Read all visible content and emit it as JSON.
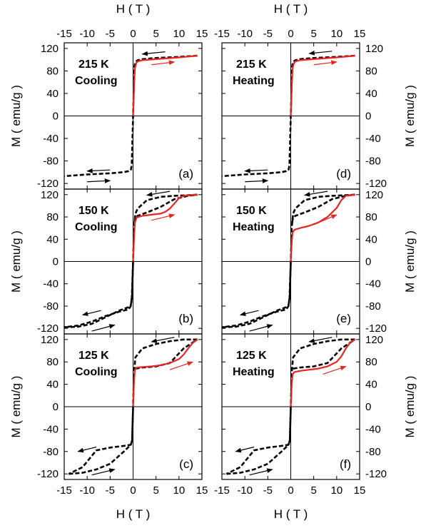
{
  "chart_data": {
    "type": "line",
    "xlabel": "H ( T )",
    "ylabel": "M ( emu/g )",
    "xlim": [
      -15,
      15
    ],
    "ylim": [
      -130,
      130
    ],
    "xticks": [
      -15,
      -10,
      -5,
      0,
      5,
      10,
      15
    ],
    "yticks": [
      -120,
      -80,
      -40,
      0,
      40,
      80,
      120
    ],
    "xtick_labels": [
      "-15",
      "-10",
      "-5",
      "0",
      "5",
      "10",
      "15"
    ],
    "ytick_labels": [
      "-120",
      "-80",
      "-40",
      "0",
      "40",
      "80",
      "120"
    ],
    "colors": {
      "branch_black": "#000000",
      "virgin_red": "#e8251f"
    },
    "panels": [
      {
        "id": "a",
        "label": "(a)",
        "temperature": "215 K",
        "mode": "Cooling",
        "series": [
          {
            "style": "dashed",
            "color": "#000000",
            "x": [
              14,
              10,
              5,
              2,
              1,
              0.5,
              0.3,
              0,
              -0.3,
              -0.5,
              -1,
              -2,
              -5,
              -10,
              -15
            ],
            "y": [
              107,
              105,
              103,
              101,
              99,
              96,
              88,
              0,
              -88,
              -96,
              -98,
              -100,
              -102,
              -104,
              -107
            ]
          },
          {
            "style": "solid",
            "color": "#e8251f",
            "x": [
              0,
              0.2,
              0.4,
              0.7,
              1,
              2,
              5,
              10,
              14
            ],
            "y": [
              0,
              50,
              85,
              94,
              97,
              99,
              101,
              104,
              107
            ]
          }
        ],
        "arrows": [
          {
            "x1": 7,
            "y1": 114,
            "x2": 2,
            "y2": 110,
            "color": "#000000"
          },
          {
            "x1": 4,
            "y1": 91,
            "x2": 9,
            "y2": 96,
            "color": "#e8251f"
          },
          {
            "x1": -5,
            "y1": -96,
            "x2": -10,
            "y2": -98,
            "color": "#000000"
          },
          {
            "x1": -10,
            "y1": -117,
            "x2": -5,
            "y2": -115,
            "color": "#000000"
          }
        ]
      },
      {
        "id": "b",
        "label": "(b)",
        "temperature": "150 K",
        "mode": "Cooling",
        "series": [
          {
            "style": "dashed",
            "color": "#000000",
            "x": [
              14,
              12,
              9,
              6,
              3,
              1,
              0.5,
              0.2,
              0,
              -0.2,
              -0.5,
              -1,
              -3,
              -6,
              -9,
              -12,
              -15
            ],
            "y": [
              120,
              119,
              118,
              116,
              110,
              95,
              86,
              60,
              0,
              -60,
              -80,
              -86,
              -90,
              -98,
              -108,
              -115,
              -118
            ]
          },
          {
            "style": "dashed",
            "color": "#000000",
            "x": [
              -15,
              -12,
              -9,
              -6,
              -3,
              -1,
              -0.5,
              -0.3,
              0
            ],
            "y": [
              -118,
              -117,
              -112,
              -100,
              -88,
              -82,
              -78,
              -70,
              0
            ]
          },
          {
            "style": "dashed",
            "color": "#000000",
            "x": [
              0.3,
              0.5,
              1,
              3,
              6,
              9,
              12,
              14
            ],
            "y": [
              70,
              78,
              82,
              88,
              98,
              112,
              118,
              120
            ]
          },
          {
            "style": "solid",
            "color": "#e8251f",
            "x": [
              0,
              0.2,
              0.4,
              0.8,
              2,
              4,
              6,
              7,
              8,
              9,
              10,
              11,
              12,
              14
            ],
            "y": [
              0,
              40,
              70,
              79,
              82,
              84,
              86,
              89,
              95,
              104,
              114,
              118,
              119,
              120
            ]
          }
        ],
        "arrows": [
          {
            "x1": 8,
            "y1": 126,
            "x2": 3,
            "y2": 119,
            "color": "#000000"
          },
          {
            "x1": 4,
            "y1": 74,
            "x2": 9,
            "y2": 84,
            "color": "#e8251f"
          },
          {
            "x1": -7,
            "y1": -88,
            "x2": -11,
            "y2": -96,
            "color": "#000000"
          },
          {
            "x1": -9,
            "y1": -125,
            "x2": -4,
            "y2": -114,
            "color": "#000000"
          }
        ]
      },
      {
        "id": "c",
        "label": "(c)",
        "temperature": "125 K",
        "mode": "Cooling",
        "series": [
          {
            "style": "dashed",
            "color": "#000000",
            "x": [
              14,
              11,
              8,
              5,
              2,
              0.5,
              0.2,
              0,
              -0.2,
              -0.5,
              -2,
              -5,
              -8,
              -11,
              -14
            ],
            "y": [
              120,
              120,
              117,
              112,
              104,
              88,
              60,
              0,
              -60,
              -68,
              -70,
              -73,
              -78,
              -108,
              -120
            ]
          },
          {
            "style": "dashed",
            "color": "#000000",
            "x": [
              -14,
              -11,
              -8,
              -5,
              -2,
              -0.5,
              -0.2,
              0
            ],
            "y": [
              -120,
              -118,
              -112,
              -102,
              -80,
              -68,
              -60,
              0
            ]
          },
          {
            "style": "dashed",
            "color": "#000000",
            "x": [
              0.5,
              2,
              5,
              8,
              11,
              14
            ],
            "y": [
              68,
              70,
              72,
              78,
              104,
              120
            ]
          },
          {
            "style": "solid",
            "color": "#e8251f",
            "x": [
              0,
              0.2,
              0.4,
              0.8,
              2,
              4,
              6,
              8,
              10,
              11,
              12,
              13,
              14
            ],
            "y": [
              0,
              45,
              66,
              70,
              71,
              72,
              74,
              78,
              85,
              93,
              104,
              114,
              120
            ]
          }
        ],
        "arrows": [
          {
            "x1": 9,
            "y1": 124,
            "x2": 4,
            "y2": 116,
            "color": "#000000"
          },
          {
            "x1": 8,
            "y1": 66,
            "x2": 13,
            "y2": 80,
            "color": "#e8251f"
          },
          {
            "x1": -8,
            "y1": -72,
            "x2": -12,
            "y2": -80,
            "color": "#000000"
          },
          {
            "x1": -9,
            "y1": -122,
            "x2": -4,
            "y2": -112,
            "color": "#000000"
          }
        ]
      },
      {
        "id": "d",
        "label": "(d)",
        "temperature": "215 K",
        "mode": "Heating",
        "series": [
          {
            "style": "dashed",
            "color": "#000000",
            "x": [
              14,
              10,
              5,
              2,
              1,
              0.5,
              0.3,
              0,
              -0.3,
              -0.5,
              -1,
              -2,
              -5,
              -10,
              -15
            ],
            "y": [
              107,
              105,
              103,
              101,
              99,
              96,
              88,
              0,
              -88,
              -96,
              -98,
              -100,
              -102,
              -104,
              -107
            ]
          },
          {
            "style": "solid",
            "color": "#e8251f",
            "x": [
              0,
              0.2,
              0.4,
              0.7,
              1,
              2,
              5,
              10,
              14
            ],
            "y": [
              0,
              50,
              85,
              94,
              97,
              99,
              101,
              104,
              107
            ]
          }
        ],
        "arrows": [
          {
            "x1": 9,
            "y1": 115,
            "x2": 4,
            "y2": 111,
            "color": "#000000"
          },
          {
            "x1": 5,
            "y1": 91,
            "x2": 10,
            "y2": 96,
            "color": "#e8251f"
          },
          {
            "x1": -5,
            "y1": -96,
            "x2": -10,
            "y2": -98,
            "color": "#000000"
          },
          {
            "x1": -10,
            "y1": -117,
            "x2": -5,
            "y2": -115,
            "color": "#000000"
          }
        ]
      },
      {
        "id": "e",
        "label": "(e)",
        "temperature": "150 K",
        "mode": "Heating",
        "series": [
          {
            "style": "dashed",
            "color": "#000000",
            "x": [
              14,
              12,
              9,
              6,
              3,
              1,
              0.5,
              0.2,
              0,
              -0.2,
              -0.5,
              -1,
              -3,
              -6,
              -9,
              -12,
              -15
            ],
            "y": [
              120,
              119,
              118,
              116,
              110,
              95,
              86,
              60,
              0,
              -60,
              -80,
              -86,
              -90,
              -98,
              -108,
              -115,
              -118
            ]
          },
          {
            "style": "dashed",
            "color": "#000000",
            "x": [
              -15,
              -12,
              -9,
              -6,
              -3,
              -1,
              -0.5,
              -0.3,
              0
            ],
            "y": [
              -118,
              -117,
              -112,
              -100,
              -88,
              -82,
              -78,
              -70,
              0
            ]
          },
          {
            "style": "dashed",
            "color": "#000000",
            "x": [
              0.3,
              0.5,
              1,
              3,
              6,
              9,
              12,
              14
            ],
            "y": [
              70,
              78,
              82,
              88,
              98,
              112,
              118,
              120
            ]
          },
          {
            "style": "solid",
            "color": "#e8251f",
            "x": [
              0,
              0.2,
              0.4,
              0.8,
              2,
              4,
              6,
              8,
              10,
              11,
              12,
              14
            ],
            "y": [
              0,
              35,
              52,
              57,
              60,
              64,
              70,
              80,
              96,
              110,
              118,
              120
            ]
          }
        ],
        "arrows": [
          {
            "x1": 8,
            "y1": 126,
            "x2": 3,
            "y2": 119,
            "color": "#000000"
          },
          {
            "x1": 5,
            "y1": 66,
            "x2": 10,
            "y2": 84,
            "color": "#e8251f"
          },
          {
            "x1": -7,
            "y1": -88,
            "x2": -11,
            "y2": -96,
            "color": "#000000"
          },
          {
            "x1": -9,
            "y1": -125,
            "x2": -4,
            "y2": -114,
            "color": "#000000"
          }
        ]
      },
      {
        "id": "f",
        "label": "(f)",
        "temperature": "125 K",
        "mode": "Heating",
        "series": [
          {
            "style": "dashed",
            "color": "#000000",
            "x": [
              14,
              11,
              8,
              5,
              2,
              0.5,
              0.2,
              0,
              -0.2,
              -0.5,
              -2,
              -5,
              -8,
              -11,
              -14
            ],
            "y": [
              120,
              120,
              117,
              112,
              104,
              88,
              60,
              0,
              -60,
              -68,
              -70,
              -73,
              -78,
              -108,
              -120
            ]
          },
          {
            "style": "dashed",
            "color": "#000000",
            "x": [
              -14,
              -11,
              -8,
              -5,
              -2,
              -0.5,
              -0.2,
              0
            ],
            "y": [
              -120,
              -118,
              -112,
              -102,
              -80,
              -68,
              -60,
              0
            ]
          },
          {
            "style": "dashed",
            "color": "#000000",
            "x": [
              0.5,
              2,
              5,
              8,
              11,
              14
            ],
            "y": [
              68,
              70,
              72,
              78,
              104,
              120
            ]
          },
          {
            "style": "solid",
            "color": "#e8251f",
            "x": [
              0,
              0.2,
              0.4,
              0.8,
              2,
              4,
              6,
              8,
              10,
              11,
              12,
              13,
              14
            ],
            "y": [
              0,
              40,
              58,
              62,
              64,
              66,
              68,
              72,
              80,
              90,
              104,
              115,
              120
            ]
          }
        ],
        "arrows": [
          {
            "x1": 9,
            "y1": 124,
            "x2": 4,
            "y2": 116,
            "color": "#000000"
          },
          {
            "x1": 7,
            "y1": 58,
            "x2": 12,
            "y2": 72,
            "color": "#e8251f"
          },
          {
            "x1": -8,
            "y1": -72,
            "x2": -12,
            "y2": -80,
            "color": "#000000"
          },
          {
            "x1": -9,
            "y1": -122,
            "x2": -4,
            "y2": -112,
            "color": "#000000"
          }
        ]
      }
    ]
  }
}
